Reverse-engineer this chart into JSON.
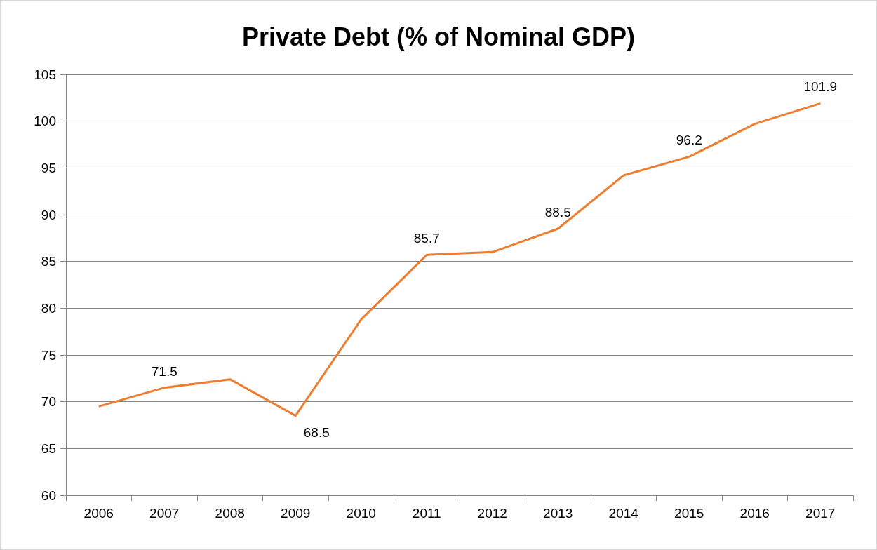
{
  "chart_data": {
    "type": "line",
    "title": "Private Debt (% of Nominal GDP)",
    "categories": [
      "2006",
      "2007",
      "2008",
      "2009",
      "2010",
      "2011",
      "2012",
      "2013",
      "2014",
      "2015",
      "2016",
      "2017"
    ],
    "series": [
      {
        "color": "#ed7d31",
        "values": [
          69.5,
          71.5,
          72.4,
          68.5,
          78.8,
          85.7,
          86.0,
          88.5,
          94.2,
          96.2,
          99.7,
          101.9
        ],
        "value_labels": [
          null,
          "71.5",
          null,
          "68.5",
          null,
          "85.7",
          null,
          "88.5",
          null,
          "96.2",
          null,
          "101.9"
        ]
      }
    ],
    "ylim": [
      60,
      105
    ],
    "yticks": [
      60,
      65,
      70,
      75,
      80,
      85,
      90,
      95,
      100,
      105
    ],
    "grid": "y",
    "marker": "none",
    "line_style": "solid"
  }
}
